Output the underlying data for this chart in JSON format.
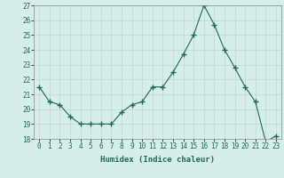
{
  "x": [
    0,
    1,
    2,
    3,
    4,
    5,
    6,
    7,
    8,
    9,
    10,
    11,
    12,
    13,
    14,
    15,
    16,
    17,
    18,
    19,
    20,
    21,
    22,
    23
  ],
  "y": [
    21.5,
    20.5,
    20.3,
    19.5,
    19.0,
    19.0,
    19.0,
    19.0,
    19.8,
    20.3,
    20.5,
    21.5,
    21.5,
    22.5,
    23.7,
    25.0,
    27.0,
    25.7,
    24.0,
    22.8,
    21.5,
    20.5,
    17.8,
    18.2
  ],
  "line_color": "#1a6b5a",
  "marker": "+",
  "marker_size": 4,
  "bg_color": "#d6eee8",
  "grid_color": "#c0d8d0",
  "xlabel": "Humidex (Indice chaleur)",
  "xlim": [
    -0.5,
    23.5
  ],
  "ylim": [
    18,
    27
  ],
  "yticks": [
    18,
    19,
    20,
    21,
    22,
    23,
    24,
    25,
    26,
    27
  ],
  "xticks": [
    0,
    1,
    2,
    3,
    4,
    5,
    6,
    7,
    8,
    9,
    10,
    11,
    12,
    13,
    14,
    15,
    16,
    17,
    18,
    19,
    20,
    21,
    22,
    23
  ],
  "label_fontsize": 6.5,
  "tick_fontsize": 5.5
}
